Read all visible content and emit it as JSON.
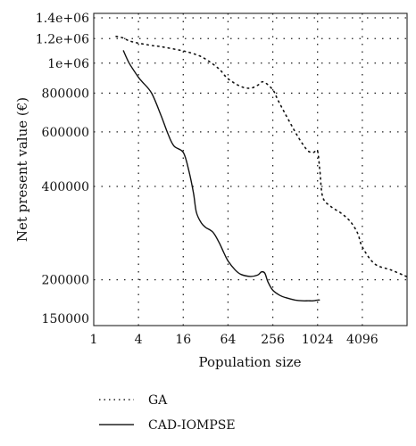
{
  "chart_data": {
    "type": "line",
    "xlabel": "Population size",
    "ylabel": "Net present value (€)",
    "x_scale": "log2",
    "y_scale": "log",
    "xlim": [
      1,
      16384
    ],
    "ylim": [
      150000,
      1400000
    ],
    "x_ticks": [
      1,
      4,
      16,
      64,
      256,
      1024,
      4096
    ],
    "x_tick_labels": [
      "1",
      "4",
      "16",
      "64",
      "256",
      "1024",
      "4096"
    ],
    "y_ticks": [
      150000,
      200000,
      400000,
      600000,
      800000,
      1000000,
      1200000,
      1400000
    ],
    "y_tick_labels": [
      "150000",
      "200000",
      "400000",
      "600000",
      "800000",
      "1e+06",
      "1.2e+06",
      "1.4e+06"
    ],
    "grid": true,
    "legend_position": "below",
    "series": [
      {
        "name": "GA",
        "style": "dotted",
        "x": [
          2,
          2.5,
          3,
          4,
          6,
          8,
          16,
          24,
          32,
          48,
          64,
          96,
          128,
          160,
          192,
          256,
          300,
          384,
          512,
          640,
          768,
          900,
          1024,
          1100,
          1200,
          1536,
          2048,
          2600,
          3072,
          3600,
          4096,
          6000,
          10000,
          16000
        ],
        "values": [
          1220000,
          1205000,
          1180000,
          1160000,
          1140000,
          1130000,
          1095000,
          1065000,
          1030000,
          960000,
          890000,
          840000,
          830000,
          848000,
          870000,
          820000,
          760000,
          680000,
          600000,
          550000,
          520000,
          515000,
          520000,
          450000,
          370000,
          345000,
          330000,
          315000,
          300000,
          280000,
          255000,
          225000,
          215000,
          205000
        ]
      },
      {
        "name": "CAD-IOMPSE",
        "style": "solid",
        "x": [
          2.5,
          3,
          4,
          4.5,
          6,
          8,
          10,
          12,
          16,
          19,
          22,
          24,
          28,
          32,
          40,
          48,
          56,
          64,
          80,
          96,
          128,
          160,
          180,
          200,
          220,
          256,
          320,
          384,
          512,
          640,
          768,
          900,
          1024,
          1100
        ],
        "values": [
          1100000,
          1000000,
          900000,
          870000,
          800000,
          680000,
          590000,
          540000,
          515000,
          450000,
          380000,
          330000,
          305000,
          295000,
          285000,
          265000,
          245000,
          230000,
          215000,
          208000,
          205000,
          207000,
          212000,
          210000,
          197000,
          185000,
          178000,
          175000,
          172000,
          171000,
          171000,
          171000,
          172000,
          172000
        ]
      }
    ]
  }
}
